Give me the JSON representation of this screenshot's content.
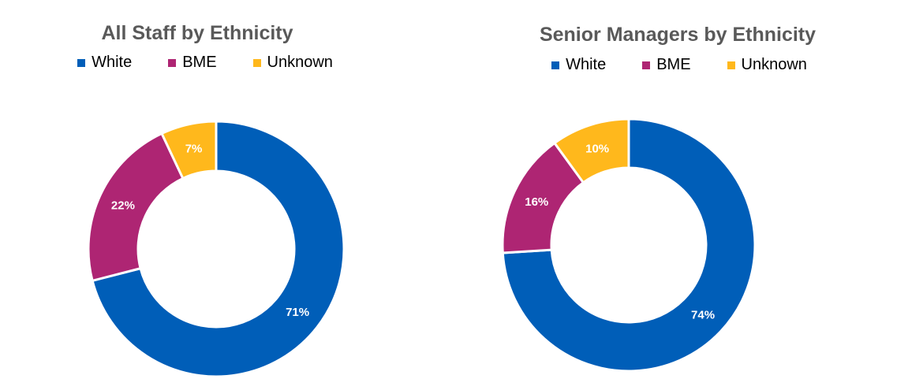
{
  "colors": {
    "White": "#005EB8",
    "BME": "#AE2573",
    "Unknown": "#FFB81C"
  },
  "chart_data": [
    {
      "type": "pie",
      "title": "All Staff by Ethnicity",
      "legend_position": "top",
      "categories": [
        "White",
        "BME",
        "Unknown"
      ],
      "values": [
        71,
        22,
        7
      ],
      "data_labels": [
        "71%",
        "22%",
        "7%"
      ],
      "donut": true
    },
    {
      "type": "pie",
      "title": "Senior Managers by Ethnicity",
      "legend_position": "top",
      "categories": [
        "White",
        "BME",
        "Unknown"
      ],
      "values": [
        74,
        16,
        10
      ],
      "data_labels": [
        "74%",
        "16%",
        "10%"
      ],
      "donut": true
    }
  ]
}
